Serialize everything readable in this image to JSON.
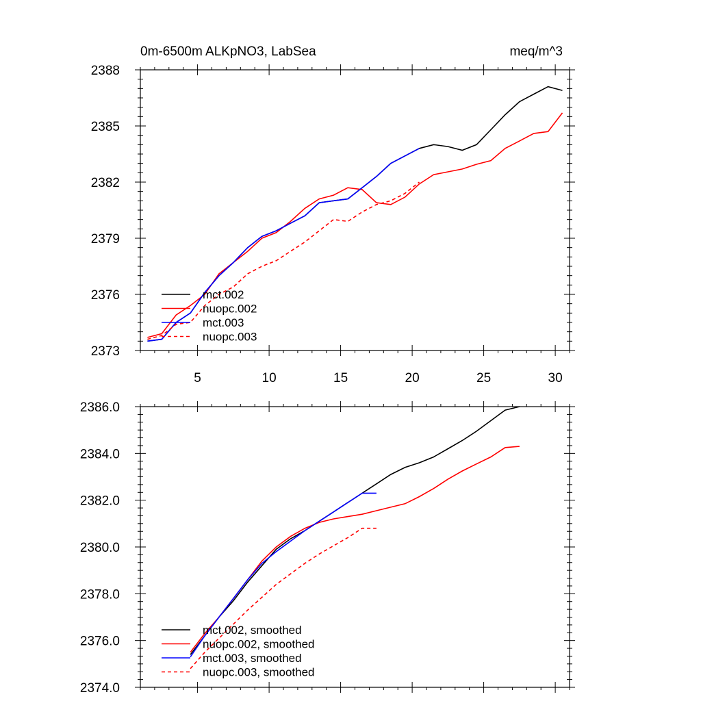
{
  "chart_data": [
    {
      "type": "line",
      "title": "0m-6500m ALKpNO3, LabSea",
      "units": "meq/m^3",
      "xlim": [
        1,
        31
      ],
      "ylim": [
        2373,
        2388
      ],
      "x_ticks": [
        "5",
        "10",
        "15",
        "20",
        "25",
        "30"
      ],
      "y_ticks": [
        "2373",
        "2376",
        "2379",
        "2382",
        "2385",
        "2388"
      ],
      "legend_position": "bottom-left",
      "series": [
        {
          "name": "mct.002",
          "color": "#000000",
          "dash": "solid",
          "x": [
            1.5,
            2.5,
            3.5,
            4.5,
            5.5,
            6.5,
            7.5,
            8.5,
            9.5,
            10.5,
            11.5,
            12.5,
            13.5,
            14.5,
            15.5,
            16.5,
            17.5,
            18.5,
            19.5,
            20.5,
            21.5,
            22.5,
            23.5,
            24.5,
            25.5,
            26.5,
            27.5,
            28.5,
            29.5,
            30.5
          ],
          "y": [
            2373.5,
            2373.6,
            2374.5,
            2375.0,
            2376.1,
            2377.0,
            2377.7,
            2378.5,
            2379.1,
            2379.4,
            2379.8,
            2380.2,
            2380.9,
            2381.0,
            2381.1,
            2381.7,
            2382.3,
            2383.0,
            2383.4,
            2383.8,
            2384.0,
            2383.9,
            2383.7,
            2384.0,
            2384.8,
            2385.6,
            2386.3,
            2386.7,
            2387.1,
            2386.9
          ]
        },
        {
          "name": "nuopc.002",
          "color": "#ff0000",
          "dash": "solid",
          "x": [
            1.5,
            2.5,
            3.5,
            4.5,
            5.5,
            6.5,
            7.5,
            8.5,
            9.5,
            10.5,
            11.5,
            12.5,
            13.5,
            14.5,
            15.5,
            16.5,
            17.5,
            18.5,
            19.5,
            20.5,
            21.5,
            22.5,
            23.5,
            24.5,
            25.5,
            26.5,
            27.5,
            28.5,
            29.5,
            30.5
          ],
          "y": [
            2373.7,
            2373.9,
            2374.9,
            2375.4,
            2376.0,
            2377.1,
            2377.7,
            2378.3,
            2379.0,
            2379.3,
            2379.9,
            2380.6,
            2381.1,
            2381.3,
            2381.7,
            2381.6,
            2380.9,
            2380.8,
            2381.2,
            2381.9,
            2382.4,
            2382.55,
            2382.7,
            2382.95,
            2383.15,
            2383.8,
            2384.2,
            2384.6,
            2384.7,
            2385.7
          ]
        },
        {
          "name": "mct.003",
          "color": "#0000ff",
          "dash": "solid",
          "x": [
            1.5,
            2.5,
            3.5,
            4.5,
            5.5,
            6.5,
            7.5,
            8.5,
            9.5,
            10.5,
            11.5,
            12.5,
            13.5,
            14.5,
            15.5,
            16.5,
            17.5,
            18.5,
            19.5,
            20.5
          ],
          "y": [
            2373.5,
            2373.6,
            2374.5,
            2375.0,
            2376.1,
            2377.0,
            2377.7,
            2378.5,
            2379.1,
            2379.4,
            2379.8,
            2380.2,
            2380.9,
            2381.0,
            2381.1,
            2381.7,
            2382.3,
            2383.0,
            2383.4,
            2383.8
          ]
        },
        {
          "name": "nuopc.003",
          "color": "#ff0000",
          "dash": "dashed",
          "x": [
            1.5,
            2.5,
            3.5,
            4.5,
            5.5,
            6.5,
            7.5,
            8.5,
            9.5,
            10.5,
            11.5,
            12.5,
            13.5,
            14.5,
            15.5,
            16.5,
            17.5,
            18.5,
            19.5,
            20.5
          ],
          "y": [
            2373.6,
            2373.8,
            2374.4,
            2374.5,
            2375.4,
            2376.0,
            2376.4,
            2377.1,
            2377.5,
            2377.8,
            2378.3,
            2378.8,
            2379.4,
            2380.0,
            2379.9,
            2380.4,
            2380.8,
            2381.0,
            2381.4,
            2382.0
          ]
        }
      ]
    },
    {
      "type": "line",
      "xlim": [
        1,
        31
      ],
      "ylim": [
        2374,
        2386
      ],
      "x_ticks": [
        "",
        "",
        "",
        "",
        "",
        ""
      ],
      "y_ticks": [
        "2374.0",
        "2376.0",
        "2378.0",
        "2380.0",
        "2382.0",
        "2384.0",
        "2386.0"
      ],
      "legend_position": "bottom-left",
      "series": [
        {
          "name": "mct.002, smoothed",
          "color": "#000000",
          "dash": "solid",
          "x": [
            4.5,
            5.5,
            6.5,
            7.5,
            8.5,
            9.5,
            10.5,
            11.5,
            12.5,
            13.5,
            14.5,
            15.5,
            16.5,
            17.5,
            18.5,
            19.5,
            20.5,
            21.5,
            22.5,
            23.5,
            24.5,
            25.5,
            26.5,
            27.5
          ],
          "y": [
            2375.4,
            2376.2,
            2377.0,
            2377.7,
            2378.5,
            2379.2,
            2379.9,
            2380.35,
            2380.7,
            2381.1,
            2381.5,
            2381.9,
            2382.3,
            2382.7,
            2383.1,
            2383.4,
            2383.6,
            2383.85,
            2384.2,
            2384.55,
            2384.95,
            2385.4,
            2385.85,
            2386.0
          ]
        },
        {
          "name": "nuopc.002, smoothed",
          "color": "#ff0000",
          "dash": "solid",
          "x": [
            4.5,
            5.5,
            6.5,
            7.5,
            8.5,
            9.5,
            10.5,
            11.5,
            12.5,
            13.5,
            14.5,
            15.5,
            16.5,
            17.5,
            18.5,
            19.5,
            20.5,
            21.5,
            22.5,
            23.5,
            24.5,
            25.5,
            26.5,
            27.5
          ],
          "y": [
            2375.5,
            2376.3,
            2377.0,
            2377.8,
            2378.6,
            2379.4,
            2380.0,
            2380.45,
            2380.8,
            2381.05,
            2381.2,
            2381.3,
            2381.4,
            2381.55,
            2381.7,
            2381.85,
            2382.15,
            2382.5,
            2382.9,
            2383.25,
            2383.55,
            2383.85,
            2384.25,
            2384.3
          ]
        },
        {
          "name": "mct.003, smoothed",
          "color": "#0000ff",
          "dash": "solid",
          "x": [
            4.5,
            5.5,
            6.5,
            7.5,
            8.5,
            9.5,
            10.5,
            11.5,
            12.5,
            13.5,
            14.5,
            15.5,
            16.5,
            17.5
          ],
          "y": [
            2375.3,
            2376.2,
            2377.0,
            2377.8,
            2378.6,
            2379.3,
            2379.8,
            2380.25,
            2380.7,
            2381.1,
            2381.5,
            2381.9,
            2382.3,
            2382.3
          ]
        },
        {
          "name": "nuopc.003, smoothed",
          "color": "#ff0000",
          "dash": "dashed",
          "x": [
            4.5,
            5.5,
            6.5,
            7.5,
            8.5,
            9.5,
            10.5,
            11.5,
            12.5,
            13.5,
            14.5,
            15.5,
            16.5,
            17.5
          ],
          "y": [
            2374.8,
            2375.5,
            2376.1,
            2376.7,
            2377.3,
            2377.85,
            2378.4,
            2378.85,
            2379.3,
            2379.7,
            2380.05,
            2380.4,
            2380.8,
            2380.8
          ]
        }
      ]
    }
  ]
}
